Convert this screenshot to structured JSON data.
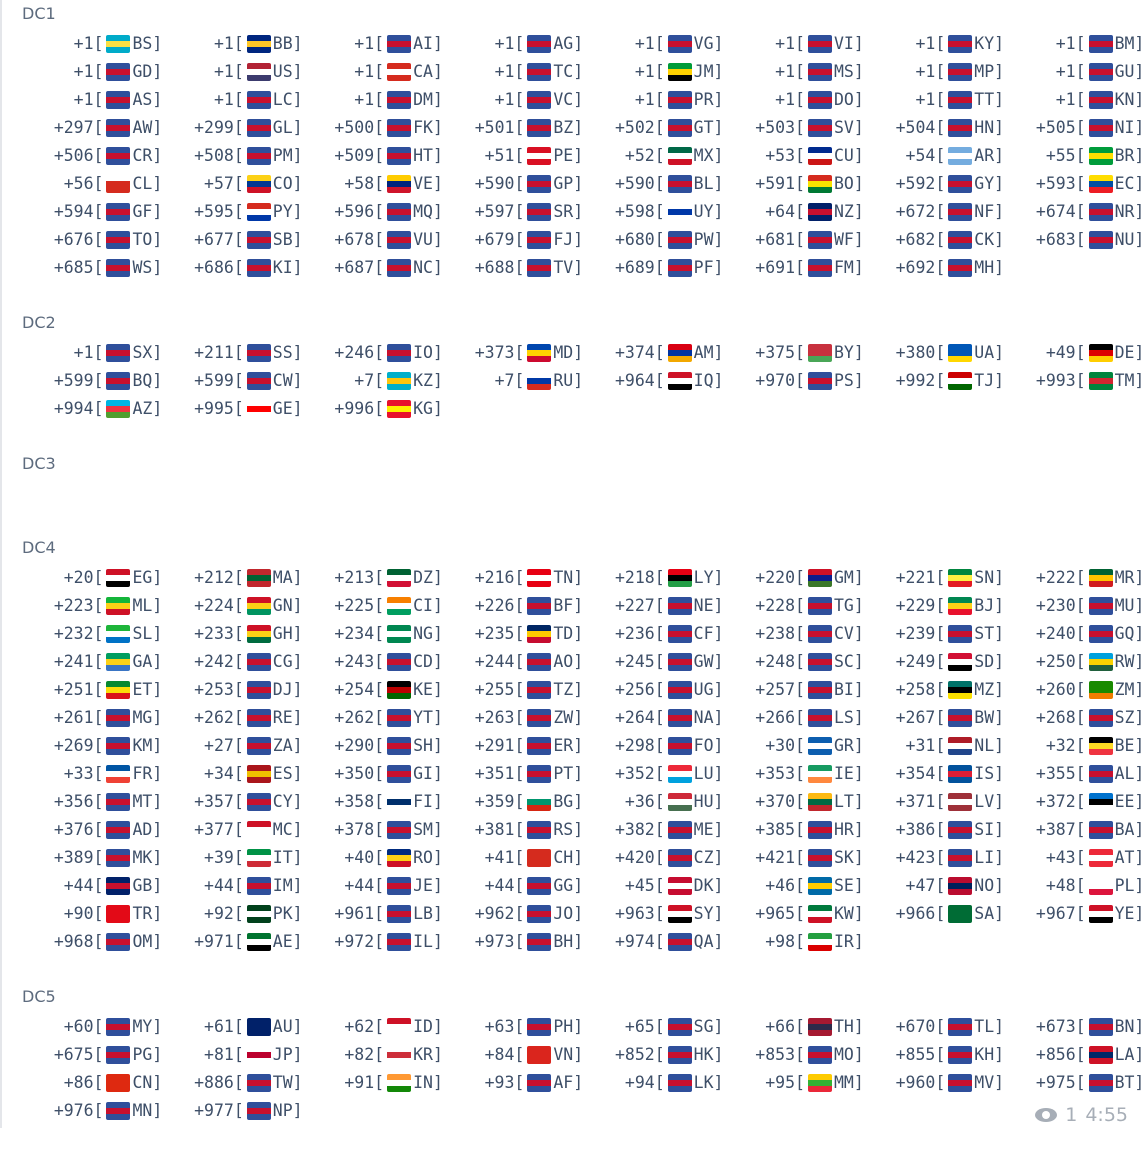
{
  "sections": [
    {
      "title": "DC1",
      "entries": [
        [
          "+1",
          "BS"
        ],
        [
          "+1",
          "BB"
        ],
        [
          "+1",
          "AI"
        ],
        [
          "+1",
          "AG"
        ],
        [
          "+1",
          "VG"
        ],
        [
          "+1",
          "VI"
        ],
        [
          "+1",
          "KY"
        ],
        [
          "+1",
          "BM"
        ],
        [
          "+1",
          "GD"
        ],
        [
          "+1",
          "US"
        ],
        [
          "+1",
          "CA"
        ],
        [
          "+1",
          "TC"
        ],
        [
          "+1",
          "JM"
        ],
        [
          "+1",
          "MS"
        ],
        [
          "+1",
          "MP"
        ],
        [
          "+1",
          "GU"
        ],
        [
          "+1",
          "AS"
        ],
        [
          "+1",
          "LC"
        ],
        [
          "+1",
          "DM"
        ],
        [
          "+1",
          "VC"
        ],
        [
          "+1",
          "PR"
        ],
        [
          "+1",
          "DO"
        ],
        [
          "+1",
          "TT"
        ],
        [
          "+1",
          "KN"
        ],
        [
          "+297",
          "AW"
        ],
        [
          "+299",
          "GL"
        ],
        [
          "+500",
          "FK"
        ],
        [
          "+501",
          "BZ"
        ],
        [
          "+502",
          "GT"
        ],
        [
          "+503",
          "SV"
        ],
        [
          "+504",
          "HN"
        ],
        [
          "+505",
          "NI"
        ],
        [
          "+506",
          "CR"
        ],
        [
          "+508",
          "PM"
        ],
        [
          "+509",
          "HT"
        ],
        [
          "+51",
          "PE"
        ],
        [
          "+52",
          "MX"
        ],
        [
          "+53",
          "CU"
        ],
        [
          "+54",
          "AR"
        ],
        [
          "+55",
          "BR"
        ],
        [
          "+56",
          "CL"
        ],
        [
          "+57",
          "CO"
        ],
        [
          "+58",
          "VE"
        ],
        [
          "+590",
          "GP"
        ],
        [
          "+590",
          "BL"
        ],
        [
          "+591",
          "BO"
        ],
        [
          "+592",
          "GY"
        ],
        [
          "+593",
          "EC"
        ],
        [
          "+594",
          "GF"
        ],
        [
          "+595",
          "PY"
        ],
        [
          "+596",
          "MQ"
        ],
        [
          "+597",
          "SR"
        ],
        [
          "+598",
          "UY"
        ],
        [
          "+64",
          "NZ"
        ],
        [
          "+672",
          "NF"
        ],
        [
          "+674",
          "NR"
        ],
        [
          "+676",
          "TO"
        ],
        [
          "+677",
          "SB"
        ],
        [
          "+678",
          "VU"
        ],
        [
          "+679",
          "FJ"
        ],
        [
          "+680",
          "PW"
        ],
        [
          "+681",
          "WF"
        ],
        [
          "+682",
          "CK"
        ],
        [
          "+683",
          "NU"
        ],
        [
          "+685",
          "WS"
        ],
        [
          "+686",
          "KI"
        ],
        [
          "+687",
          "NC"
        ],
        [
          "+688",
          "TV"
        ],
        [
          "+689",
          "PF"
        ],
        [
          "+691",
          "FM"
        ],
        [
          "+692",
          "MH"
        ]
      ]
    },
    {
      "title": "DC2",
      "entries": [
        [
          "+1",
          "SX"
        ],
        [
          "+211",
          "SS"
        ],
        [
          "+246",
          "IO"
        ],
        [
          "+373",
          "MD"
        ],
        [
          "+374",
          "AM"
        ],
        [
          "+375",
          "BY"
        ],
        [
          "+380",
          "UA"
        ],
        [
          "+49",
          "DE"
        ],
        [
          "+599",
          "BQ"
        ],
        [
          "+599",
          "CW"
        ],
        [
          "+7",
          "KZ"
        ],
        [
          "+7",
          "RU"
        ],
        [
          "+964",
          "IQ"
        ],
        [
          "+970",
          "PS"
        ],
        [
          "+992",
          "TJ"
        ],
        [
          "+993",
          "TM"
        ],
        [
          "+994",
          "AZ"
        ],
        [
          "+995",
          "GE"
        ],
        [
          "+996",
          "KG"
        ]
      ]
    },
    {
      "title": "DC3",
      "entries": []
    },
    {
      "title": "DC4",
      "entries": [
        [
          "+20",
          "EG"
        ],
        [
          "+212",
          "MA"
        ],
        [
          "+213",
          "DZ"
        ],
        [
          "+216",
          "TN"
        ],
        [
          "+218",
          "LY"
        ],
        [
          "+220",
          "GM"
        ],
        [
          "+221",
          "SN"
        ],
        [
          "+222",
          "MR"
        ],
        [
          "+223",
          "ML"
        ],
        [
          "+224",
          "GN"
        ],
        [
          "+225",
          "CI"
        ],
        [
          "+226",
          "BF"
        ],
        [
          "+227",
          "NE"
        ],
        [
          "+228",
          "TG"
        ],
        [
          "+229",
          "BJ"
        ],
        [
          "+230",
          "MU"
        ],
        [
          "+232",
          "SL"
        ],
        [
          "+233",
          "GH"
        ],
        [
          "+234",
          "NG"
        ],
        [
          "+235",
          "TD"
        ],
        [
          "+236",
          "CF"
        ],
        [
          "+238",
          "CV"
        ],
        [
          "+239",
          "ST"
        ],
        [
          "+240",
          "GQ"
        ],
        [
          "+241",
          "GA"
        ],
        [
          "+242",
          "CG"
        ],
        [
          "+243",
          "CD"
        ],
        [
          "+244",
          "AO"
        ],
        [
          "+245",
          "GW"
        ],
        [
          "+248",
          "SC"
        ],
        [
          "+249",
          "SD"
        ],
        [
          "+250",
          "RW"
        ],
        [
          "+251",
          "ET"
        ],
        [
          "+253",
          "DJ"
        ],
        [
          "+254",
          "KE"
        ],
        [
          "+255",
          "TZ"
        ],
        [
          "+256",
          "UG"
        ],
        [
          "+257",
          "BI"
        ],
        [
          "+258",
          "MZ"
        ],
        [
          "+260",
          "ZM"
        ],
        [
          "+261",
          "MG"
        ],
        [
          "+262",
          "RE"
        ],
        [
          "+262",
          "YT"
        ],
        [
          "+263",
          "ZW"
        ],
        [
          "+264",
          "NA"
        ],
        [
          "+266",
          "LS"
        ],
        [
          "+267",
          "BW"
        ],
        [
          "+268",
          "SZ"
        ],
        [
          "+269",
          "KM"
        ],
        [
          "+27",
          "ZA"
        ],
        [
          "+290",
          "SH"
        ],
        [
          "+291",
          "ER"
        ],
        [
          "+298",
          "FO"
        ],
        [
          "+30",
          "GR"
        ],
        [
          "+31",
          "NL"
        ],
        [
          "+32",
          "BE"
        ],
        [
          "+33",
          "FR"
        ],
        [
          "+34",
          "ES"
        ],
        [
          "+350",
          "GI"
        ],
        [
          "+351",
          "PT"
        ],
        [
          "+352",
          "LU"
        ],
        [
          "+353",
          "IE"
        ],
        [
          "+354",
          "IS"
        ],
        [
          "+355",
          "AL"
        ],
        [
          "+356",
          "MT"
        ],
        [
          "+357",
          "CY"
        ],
        [
          "+358",
          "FI"
        ],
        [
          "+359",
          "BG"
        ],
        [
          "+36",
          "HU"
        ],
        [
          "+370",
          "LT"
        ],
        [
          "+371",
          "LV"
        ],
        [
          "+372",
          "EE"
        ],
        [
          "+376",
          "AD"
        ],
        [
          "+377",
          "MC"
        ],
        [
          "+378",
          "SM"
        ],
        [
          "+381",
          "RS"
        ],
        [
          "+382",
          "ME"
        ],
        [
          "+385",
          "HR"
        ],
        [
          "+386",
          "SI"
        ],
        [
          "+387",
          "BA"
        ],
        [
          "+389",
          "MK"
        ],
        [
          "+39",
          "IT"
        ],
        [
          "+40",
          "RO"
        ],
        [
          "+41",
          "CH"
        ],
        [
          "+420",
          "CZ"
        ],
        [
          "+421",
          "SK"
        ],
        [
          "+423",
          "LI"
        ],
        [
          "+43",
          "AT"
        ],
        [
          "+44",
          "GB"
        ],
        [
          "+44",
          "IM"
        ],
        [
          "+44",
          "JE"
        ],
        [
          "+44",
          "GG"
        ],
        [
          "+45",
          "DK"
        ],
        [
          "+46",
          "SE"
        ],
        [
          "+47",
          "NO"
        ],
        [
          "+48",
          "PL"
        ],
        [
          "+90",
          "TR"
        ],
        [
          "+92",
          "PK"
        ],
        [
          "+961",
          "LB"
        ],
        [
          "+962",
          "JO"
        ],
        [
          "+963",
          "SY"
        ],
        [
          "+965",
          "KW"
        ],
        [
          "+966",
          "SA"
        ],
        [
          "+967",
          "YE"
        ],
        [
          "+968",
          "OM"
        ],
        [
          "+971",
          "AE"
        ],
        [
          "+972",
          "IL"
        ],
        [
          "+973",
          "BH"
        ],
        [
          "+974",
          "QA"
        ],
        [
          "+98",
          "IR"
        ]
      ]
    },
    {
      "title": "DC5",
      "entries": [
        [
          "+60",
          "MY"
        ],
        [
          "+61",
          "AU"
        ],
        [
          "+62",
          "ID"
        ],
        [
          "+63",
          "PH"
        ],
        [
          "+65",
          "SG"
        ],
        [
          "+66",
          "TH"
        ],
        [
          "+670",
          "TL"
        ],
        [
          "+673",
          "BN"
        ],
        [
          "+675",
          "PG"
        ],
        [
          "+81",
          "JP"
        ],
        [
          "+82",
          "KR"
        ],
        [
          "+84",
          "VN"
        ],
        [
          "+852",
          "HK"
        ],
        [
          "+853",
          "MO"
        ],
        [
          "+855",
          "KH"
        ],
        [
          "+856",
          "LA"
        ],
        [
          "+86",
          "CN"
        ],
        [
          "+886",
          "TW"
        ],
        [
          "+91",
          "IN"
        ],
        [
          "+93",
          "AF"
        ],
        [
          "+94",
          "LK"
        ],
        [
          "+95",
          "MM"
        ],
        [
          "+960",
          "MV"
        ],
        [
          "+975",
          "BT"
        ],
        [
          "+976",
          "MN"
        ],
        [
          "+977",
          "NP"
        ]
      ]
    }
  ],
  "footer": {
    "views_icon": "eye-icon",
    "views": "1",
    "time": "4:55"
  },
  "colors": {
    "text": "#3e4f68",
    "heading": "#5d6b7e",
    "meta": "#a7aeb7"
  }
}
